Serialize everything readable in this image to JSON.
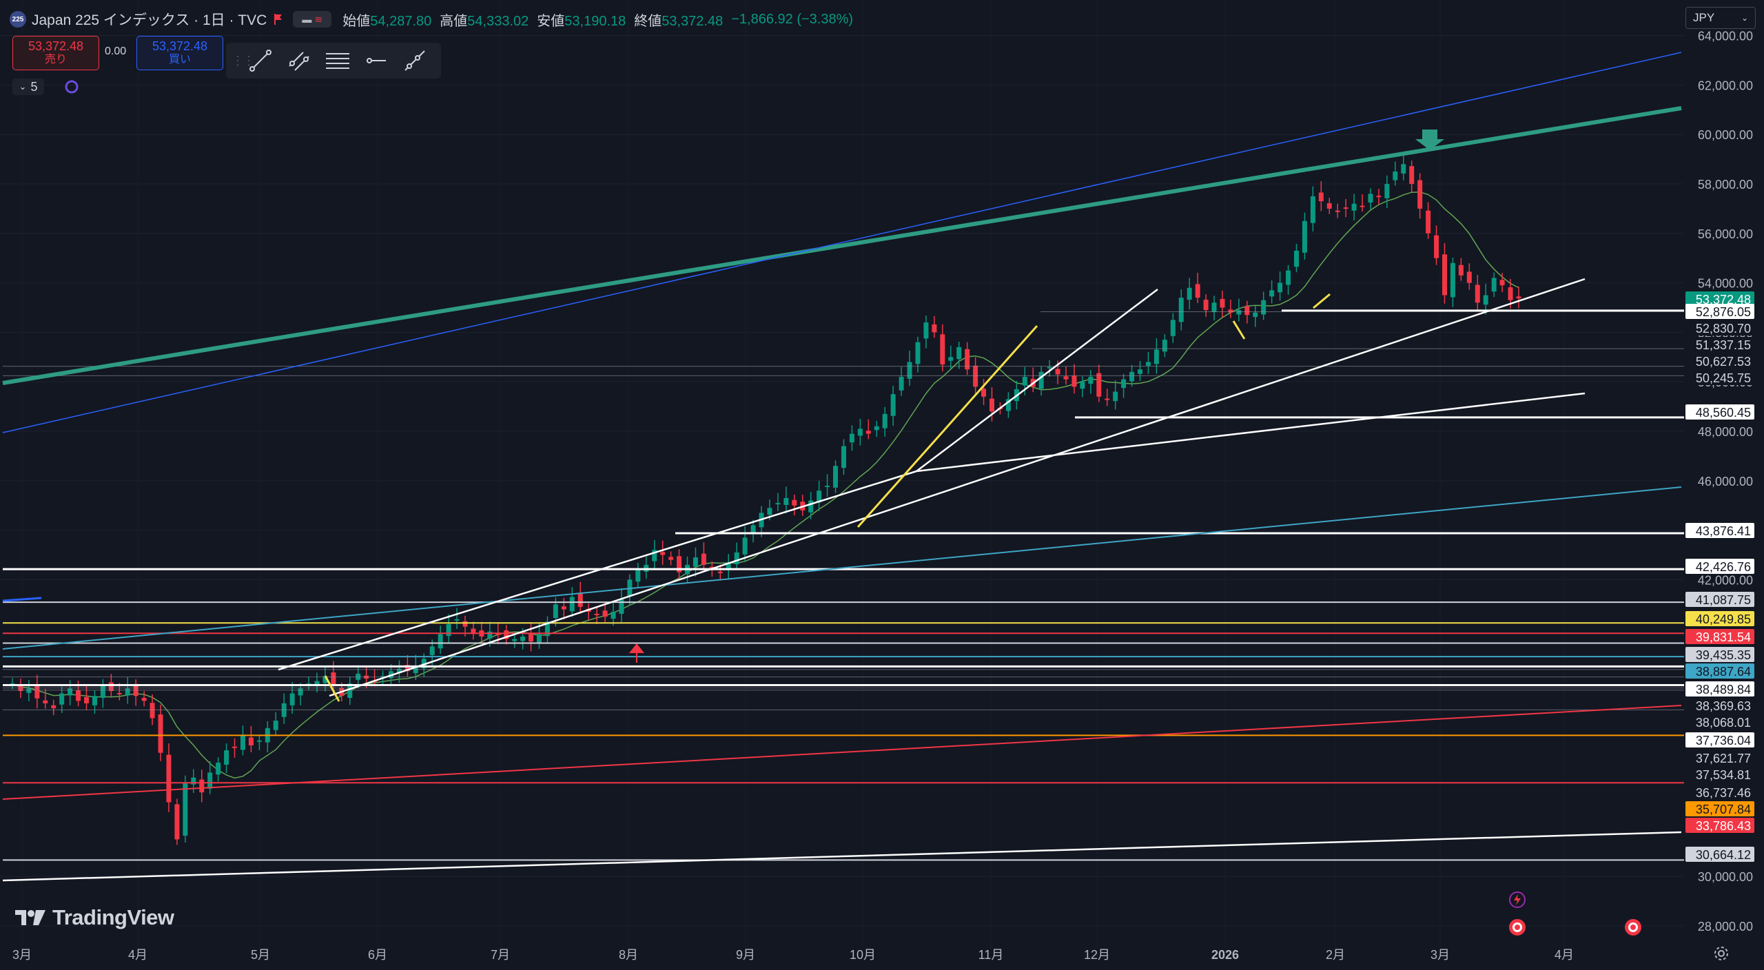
{
  "header": {
    "symbol_badge": "225",
    "title": "Japan 225 インデックス · 1日 · TVC",
    "open_label": "始値",
    "open_value": "54,287.80",
    "high_label": "高値",
    "high_value": "54,333.02",
    "low_label": "安値",
    "low_value": "53,190.18",
    "close_label": "終値",
    "close_value": "53,372.48",
    "change": "−1,866.92 (−3.38%)"
  },
  "trade": {
    "sell_price": "53,372.48",
    "sell_label": "売り",
    "spread": "0.00",
    "buy_price": "53,372.48",
    "buy_label": "買い"
  },
  "indicator_toggle": "5",
  "currency": "JPY",
  "watermark": "TradingView",
  "colors": {
    "up": "#089981",
    "down": "#f23645",
    "bg": "#131722",
    "channel": "#2e9c84",
    "blue": "#2962ff",
    "cyan": "#3ea6c6",
    "yellow": "#f5e04a",
    "orange": "#ff9800"
  },
  "chart_data": {
    "type": "candlestick",
    "x_ticks": [
      "3月",
      "4月",
      "5月",
      "6月",
      "7月",
      "8月",
      "9月",
      "10月",
      "11月",
      "12月",
      "2026",
      "2月",
      "3月",
      "4月"
    ],
    "y_ticks": [
      "64,000.00",
      "62,000.00",
      "60,000.00",
      "58,000.00",
      "56,000.00",
      "54,000.00",
      "52,000.00",
      "50,000.00",
      "48,000.00",
      "46,000.00",
      "44,000.00",
      "42,000.00",
      "30,000.00",
      "28,000.00"
    ],
    "ylim": [
      27500,
      64600
    ],
    "last_price": "53,372.48",
    "price_labels": [
      {
        "text": "52,876.05",
        "value": 52876.05,
        "style": "white"
      },
      {
        "text": "52,830.70",
        "value": 52830.7,
        "style": "plain"
      },
      {
        "text": "51,337.15",
        "value": 51337.15,
        "style": "plain"
      },
      {
        "text": "50,627.53",
        "value": 50627.53,
        "style": "plain"
      },
      {
        "text": "50,245.75",
        "value": 50245.75,
        "style": "plain"
      },
      {
        "text": "48,560.45",
        "value": 48560.45,
        "style": "white"
      },
      {
        "text": "43,876.41",
        "value": 43876.41,
        "style": "white"
      },
      {
        "text": "42,426.76",
        "value": 42426.76,
        "style": "white"
      },
      {
        "text": "41,087.75",
        "value": 41087.75,
        "style": "gray"
      },
      {
        "text": "40,249.85",
        "value": 40249.85,
        "style": "yellow"
      },
      {
        "text": "39,831.54",
        "value": 39831.54,
        "style": "red"
      },
      {
        "text": "39,435.35",
        "value": 39435.35,
        "style": "gray"
      },
      {
        "text": "38,887.64",
        "value": 38887.64,
        "style": "cyan"
      },
      {
        "text": "38,489.84",
        "value": 38489.84,
        "style": "white"
      },
      {
        "text": "38,369.63",
        "value": 38369.63,
        "style": "plain"
      },
      {
        "text": "38,068.01",
        "value": 38068.01,
        "style": "plain"
      },
      {
        "text": "37,736.04",
        "value": 37736.04,
        "style": "white"
      },
      {
        "text": "37,621.77",
        "value": 37621.77,
        "style": "plain"
      },
      {
        "text": "37,534.81",
        "value": 37534.81,
        "style": "plain"
      },
      {
        "text": "36,737.46",
        "value": 36737.46,
        "style": "plain"
      },
      {
        "text": "35,707.84",
        "value": 35707.84,
        "style": "orange"
      },
      {
        "text": "33,786.43",
        "value": 33786.43,
        "style": "red"
      },
      {
        "text": "30,664.12",
        "value": 30664.12,
        "style": "gray"
      }
    ],
    "closes": [
      37800,
      37500,
      37600,
      37200,
      37000,
      36800,
      37400,
      37600,
      37100,
      37000,
      37300,
      37700,
      37500,
      37400,
      37600,
      37300,
      37100,
      36400,
      35000,
      33000,
      31500,
      33800,
      34000,
      33400,
      34200,
      34600,
      35100,
      35200,
      35700,
      35300,
      35500,
      36000,
      36300,
      37000,
      37400,
      37600,
      37800,
      37900,
      38100,
      37700,
      37300,
      37800,
      38200,
      38000,
      37900,
      38100,
      38300,
      38400,
      38300,
      38500,
      38800,
      39300,
      39800,
      40200,
      40400,
      40100,
      39800,
      39700,
      39900,
      39800,
      39600,
      39600,
      39700,
      39500,
      39800,
      40300,
      41000,
      40800,
      41300,
      40900,
      40700,
      40600,
      40500,
      40700,
      41200,
      42000,
      42400,
      42600,
      43200,
      43000,
      42800,
      42300,
      42600,
      42900,
      42600,
      42400,
      42300,
      42700,
      43100,
      43700,
      44200,
      44700,
      44900,
      45100,
      45300,
      45000,
      44800,
      45200,
      45600,
      45800,
      46600,
      47400,
      47900,
      48100,
      47900,
      48200,
      48700,
      49500,
      50200,
      50800,
      51600,
      52400,
      52000,
      50700,
      51000,
      51400,
      50500,
      49800,
      49400,
      48800,
      48900,
      49300,
      49700,
      50200,
      49800,
      50400,
      50600,
      50300,
      50100,
      49800,
      50000,
      50200,
      49400,
      49300,
      49600,
      50100,
      50400,
      50500,
      50800,
      51300,
      51700,
      52500,
      53400,
      53800,
      53400,
      52900,
      53200,
      53000,
      52800,
      52900,
      52700,
      52800,
      53300,
      53700,
      54000,
      54500,
      55300,
      56500,
      57500,
      57300,
      57000,
      56900,
      57000,
      57200,
      57100,
      57600,
      57500,
      58000,
      58500,
      58800,
      58000,
      57000,
      56000,
      55000,
      53500,
      54800,
      54300,
      54000,
      53200,
      53500,
      54200,
      53900,
      53300,
      53372
    ]
  }
}
